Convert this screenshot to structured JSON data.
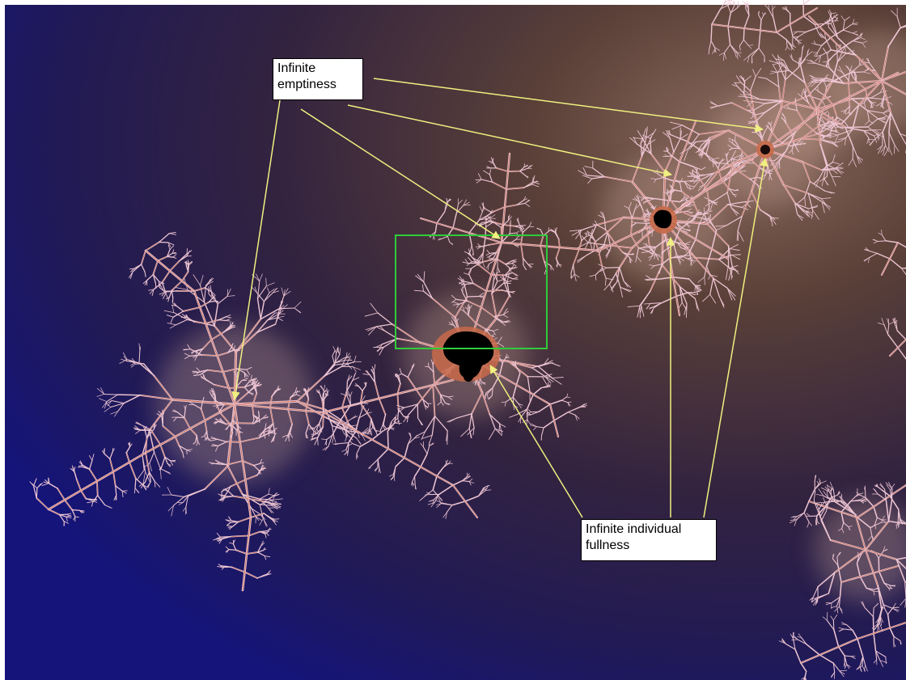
{
  "callouts": {
    "emptiness": {
      "line1": "Infinite",
      "line2": "emptiness"
    },
    "fullness": {
      "line1": "Infinite individual",
      "line2": "fullness"
    }
  },
  "colors": {
    "background_deep": "#14147a",
    "background_mid": "#2e1f45",
    "background_warm": "#5a4038",
    "filament": "#ecc4d2",
    "filament_core": "#c86a4a",
    "minibrot": "#000000",
    "arrow": "#f0f080",
    "selection_box": "#2fcc3a"
  }
}
